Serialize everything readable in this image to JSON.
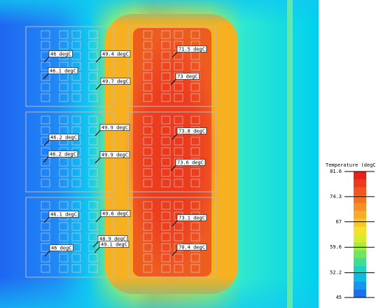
{
  "colorbar": {
    "title": "Temperature (degC)",
    "ticks": [
      81.6,
      74.3,
      67,
      59.6,
      52.2,
      45
    ]
  },
  "probes": [
    "46 degC",
    "46.1 degC",
    "46.2 degC",
    "46.2 degC",
    "46.1 degC",
    "46 degC",
    "49.4 degC",
    "49.7 degC",
    "49.9 degC",
    "49.9 degC",
    "49.6 degC",
    "48.9 degC",
    "49.1 degC",
    "71.5 degC",
    "73 degC",
    "73.8 degC",
    "73.6 degC",
    "73.1 degC",
    "70.4 degC"
  ]
}
